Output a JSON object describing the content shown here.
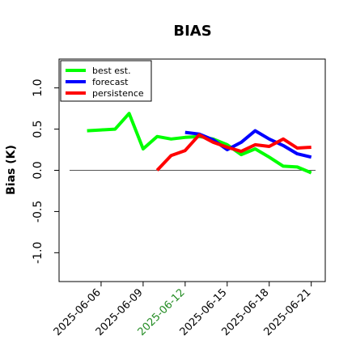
{
  "chart_data": {
    "type": "line",
    "title": "BIAS",
    "xlabel": "",
    "ylabel": "Bias (K)",
    "xlim": [
      "2025-06-03",
      "2025-06-22"
    ],
    "ylim": [
      -1.35,
      1.35
    ],
    "grid": false,
    "legend_position": "top-left",
    "zero_line": 0,
    "x_ticks": [
      {
        "date": "2025-06-06",
        "label": "2025-06-06",
        "color": "#000000"
      },
      {
        "date": "2025-06-09",
        "label": "2025-06-09",
        "color": "#000000"
      },
      {
        "date": "2025-06-12",
        "label": "2025-06-12",
        "color": "#228b22"
      },
      {
        "date": "2025-06-15",
        "label": "2025-06-15",
        "color": "#000000"
      },
      {
        "date": "2025-06-18",
        "label": "2025-06-18",
        "color": "#000000"
      },
      {
        "date": "2025-06-21",
        "label": "2025-06-21",
        "color": "#000000"
      }
    ],
    "y_ticks": [
      {
        "value": -1.0,
        "label": "-1.0"
      },
      {
        "value": -0.5,
        "label": "-0.5"
      },
      {
        "value": 0.0,
        "label": "0.0"
      },
      {
        "value": 0.5,
        "label": "0.5"
      },
      {
        "value": 1.0,
        "label": "1.0"
      }
    ],
    "series": [
      {
        "name": "best est.",
        "color": "#00ff00",
        "x": [
          "2025-06-05",
          "2025-06-06",
          "2025-06-07",
          "2025-06-08",
          "2025-06-09",
          "2025-06-10",
          "2025-06-11",
          "2025-06-12",
          "2025-06-13",
          "2025-06-14",
          "2025-06-15",
          "2025-06-16",
          "2025-06-17",
          "2025-06-18",
          "2025-06-19",
          "2025-06-20",
          "2025-06-21"
        ],
        "y": [
          0.48,
          0.49,
          0.5,
          0.69,
          0.26,
          0.41,
          0.38,
          0.4,
          0.41,
          0.38,
          0.31,
          0.19,
          0.26,
          0.16,
          0.05,
          0.04,
          -0.03
        ]
      },
      {
        "name": "forecast",
        "color": "#0000ff",
        "x": [
          "2025-06-12",
          "2025-06-13",
          "2025-06-14",
          "2025-06-15",
          "2025-06-16",
          "2025-06-17",
          "2025-06-18",
          "2025-06-19",
          "2025-06-20",
          "2025-06-21"
        ],
        "y": [
          0.46,
          0.44,
          0.37,
          0.25,
          0.34,
          0.48,
          0.38,
          0.3,
          0.2,
          0.16
        ]
      },
      {
        "name": "persistence",
        "color": "#ff0000",
        "x": [
          "2025-06-10",
          "2025-06-11",
          "2025-06-12",
          "2025-06-13",
          "2025-06-14",
          "2025-06-15",
          "2025-06-16",
          "2025-06-17",
          "2025-06-18",
          "2025-06-19",
          "2025-06-20",
          "2025-06-21"
        ],
        "y": [
          0.0,
          0.18,
          0.24,
          0.43,
          0.34,
          0.28,
          0.23,
          0.31,
          0.29,
          0.38,
          0.27,
          0.28
        ]
      }
    ]
  }
}
